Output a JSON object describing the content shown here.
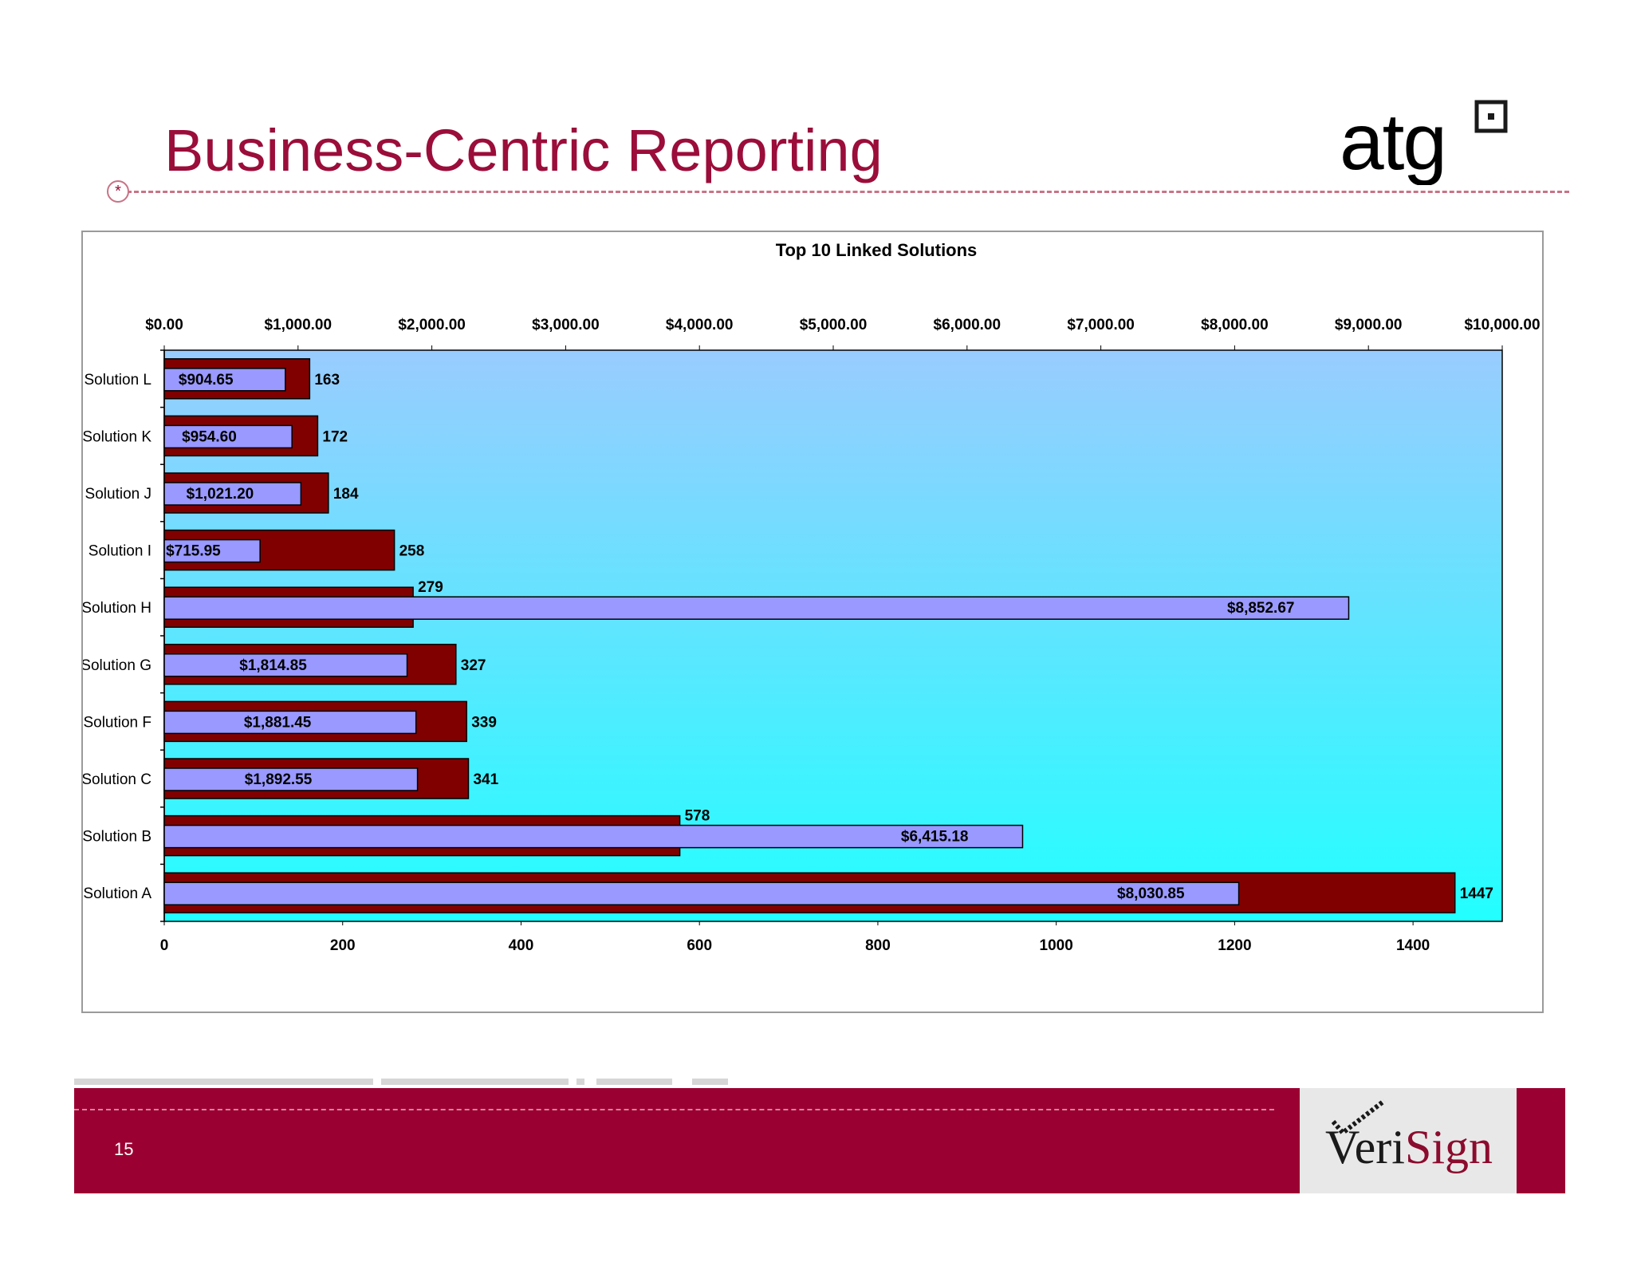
{
  "slide": {
    "title": "Business-Centric Reporting",
    "page_number": "15",
    "logo_text": "atg",
    "footer_logo_pre": "Veri",
    "footer_logo_post": "Sign"
  },
  "colors": {
    "accent": "#9b0d3a",
    "count_bar": "#800000",
    "value_bar": "#9999ff",
    "plot_top": "#99ccff",
    "plot_bottom": "#22ffff"
  },
  "chart_data": {
    "type": "bar",
    "orientation": "horizontal",
    "title": "Top 10 Linked Solutions",
    "categories": [
      "Solution L",
      "Solution K",
      "Solution J",
      "Solution I",
      "Solution H",
      "Solution G",
      "Solution F",
      "Solution C",
      "Solution B",
      "Solution A"
    ],
    "series": [
      {
        "axis": "bottom",
        "values": [
          163,
          172,
          184,
          258,
          279,
          327,
          339,
          341,
          578,
          1447
        ],
        "labels": [
          "163",
          "172",
          "184",
          "258",
          "279",
          "327",
          "339",
          "341",
          "578",
          "1447"
        ]
      },
      {
        "axis": "top",
        "values": [
          904.65,
          954.6,
          1021.2,
          715.95,
          8852.67,
          1814.85,
          1881.45,
          1892.55,
          6415.18,
          8030.85
        ],
        "labels": [
          "$904.65",
          "$954.60",
          "$1,021.20",
          "$715.95",
          "$8,852.67",
          "$1,814.85",
          "$1,881.45",
          "$1,892.55",
          "$6,415.18",
          "$8,030.85"
        ]
      }
    ],
    "x_bottom": {
      "min": 0,
      "max": 1500,
      "ticks": [
        0,
        200,
        400,
        600,
        800,
        1000,
        1200,
        1400
      ],
      "tick_labels": [
        "0",
        "200",
        "400",
        "600",
        "800",
        "1000",
        "1200",
        "1400"
      ]
    },
    "x_top": {
      "min": 0,
      "max": 10000,
      "ticks": [
        0,
        1000,
        2000,
        3000,
        4000,
        5000,
        6000,
        7000,
        8000,
        9000,
        10000
      ],
      "tick_labels": [
        "$0.00",
        "$1,000.00",
        "$2,000.00",
        "$3,000.00",
        "$4,000.00",
        "$5,000.00",
        "$6,000.00",
        "$7,000.00",
        "$8,000.00",
        "$9,000.00",
        "$10,000.00"
      ]
    },
    "grid": false,
    "legend": "none"
  }
}
